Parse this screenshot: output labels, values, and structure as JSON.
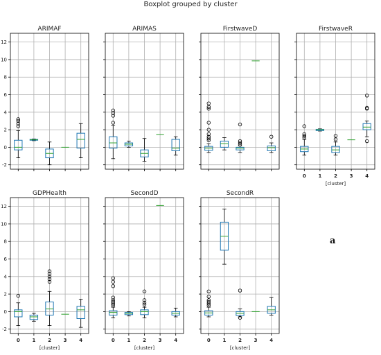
{
  "figure": {
    "title": "Boxplot grouped by cluster",
    "panel_tag": "a"
  },
  "chart_data": {
    "type": "boxplot",
    "shared": {
      "x_tick_labels": [
        "0",
        "1",
        "2",
        "3",
        "4"
      ],
      "xlabel": "[cluster]",
      "ylim_top_row": [
        -2.5,
        13
      ],
      "ylim_bottom_row": [
        -2.5,
        13
      ],
      "y_ticks": [
        -2,
        0,
        2,
        4,
        6,
        8,
        10,
        12
      ],
      "grid": true,
      "colors": {
        "box": "#1f77b4",
        "median": "#2ca02c",
        "flier": "#000000",
        "whisker": "#000000",
        "grid": "#b0b0b0"
      }
    },
    "subplots": [
      {
        "title": "ARIMAF",
        "show_x_ticks": false,
        "show_y_ticks": true,
        "boxes": [
          {
            "cluster": "0",
            "wlo": -1.2,
            "q1": -0.3,
            "med": 0.0,
            "q3": 0.8,
            "whi": 1.9,
            "fliers": [
              2.4,
              2.7,
              3.0,
              3.2
            ]
          },
          {
            "cluster": "1",
            "wlo": 0.75,
            "q1": 0.8,
            "med": 0.85,
            "q3": 0.9,
            "whi": 0.95,
            "fliers": []
          },
          {
            "cluster": "2",
            "wlo": -2.0,
            "q1": -1.2,
            "med": -0.7,
            "q3": -0.2,
            "whi": 0.6,
            "fliers": []
          },
          {
            "cluster": "3",
            "wlo": 0.0,
            "q1": 0.0,
            "med": 0.0,
            "q3": 0.0,
            "whi": 0.0,
            "fliers": []
          },
          {
            "cluster": "4",
            "wlo": -1.2,
            "q1": -0.1,
            "med": 0.9,
            "q3": 1.6,
            "whi": 2.7,
            "fliers": []
          }
        ]
      },
      {
        "title": "ARIMAS",
        "show_x_ticks": false,
        "show_y_ticks": false,
        "boxes": [
          {
            "cluster": "0",
            "wlo": -1.3,
            "q1": -0.1,
            "med": 0.5,
            "q3": 1.2,
            "whi": 2.5,
            "fliers": [
              2.8,
              3.6,
              3.9,
              4.2
            ]
          },
          {
            "cluster": "1",
            "wlo": 0.0,
            "q1": 0.15,
            "med": 0.35,
            "q3": 0.5,
            "whi": 0.7,
            "fliers": []
          },
          {
            "cluster": "2",
            "wlo": -1.6,
            "q1": -1.1,
            "med": -0.7,
            "q3": -0.3,
            "whi": 1.0,
            "fliers": []
          },
          {
            "cluster": "3",
            "wlo": 1.45,
            "q1": 1.45,
            "med": 1.45,
            "q3": 1.45,
            "whi": 1.45,
            "fliers": []
          },
          {
            "cluster": "4",
            "wlo": -0.9,
            "q1": -0.4,
            "med": -0.1,
            "q3": 0.9,
            "whi": 1.2,
            "fliers": []
          }
        ]
      },
      {
        "title": "FirstwaveD",
        "show_x_ticks": false,
        "show_y_ticks": false,
        "boxes": [
          {
            "cluster": "0",
            "wlo": -0.6,
            "q1": -0.35,
            "med": -0.1,
            "q3": 0.1,
            "whi": 0.4,
            "fliers": [
              0.8,
              1.0,
              1.2,
              1.5,
              2.0,
              2.8,
              4.4,
              4.6,
              5.0
            ]
          },
          {
            "cluster": "1",
            "wlo": -0.3,
            "q1": 0.0,
            "med": 0.4,
            "q3": 0.7,
            "whi": 1.1,
            "fliers": []
          },
          {
            "cluster": "2",
            "wlo": -0.6,
            "q1": -0.3,
            "med": -0.1,
            "q3": 0.0,
            "whi": 0.15,
            "fliers": [
              0.3,
              0.5,
              0.7,
              2.6
            ]
          },
          {
            "cluster": "3",
            "wlo": 9.85,
            "q1": 9.85,
            "med": 9.85,
            "q3": 9.85,
            "whi": 9.85,
            "fliers": []
          },
          {
            "cluster": "4",
            "wlo": -0.6,
            "q1": -0.4,
            "med": -0.05,
            "q3": 0.15,
            "whi": 0.5,
            "fliers": [
              1.2
            ]
          }
        ]
      },
      {
        "title": "FirstwaveR",
        "show_x_ticks": true,
        "show_y_ticks": false,
        "boxes": [
          {
            "cluster": "0",
            "wlo": -0.9,
            "q1": -0.5,
            "med": -0.2,
            "q3": 0.1,
            "whi": 0.9,
            "fliers": [
              1.1,
              1.3,
              1.5,
              2.4
            ]
          },
          {
            "cluster": "1",
            "wlo": 1.85,
            "q1": 1.9,
            "med": 2.0,
            "q3": 2.05,
            "whi": 2.1,
            "fliers": []
          },
          {
            "cluster": "2",
            "wlo": -0.9,
            "q1": -0.6,
            "med": -0.3,
            "q3": 0.1,
            "whi": 0.6,
            "fliers": [
              0.9,
              1.3
            ]
          },
          {
            "cluster": "3",
            "wlo": 0.85,
            "q1": 0.85,
            "med": 0.85,
            "q3": 0.85,
            "whi": 0.85,
            "fliers": []
          },
          {
            "cluster": "4",
            "wlo": 1.2,
            "q1": 2.0,
            "med": 2.3,
            "q3": 2.7,
            "whi": 3.0,
            "fliers": [
              0.7,
              4.4,
              4.5,
              5.9
            ]
          }
        ]
      },
      {
        "title": "GDPHealth",
        "show_x_ticks": true,
        "show_y_ticks": true,
        "boxes": [
          {
            "cluster": "0",
            "wlo": -1.6,
            "q1": -0.6,
            "med": 0.0,
            "q3": 0.2,
            "whi": 1.0,
            "fliers": [
              1.8
            ]
          },
          {
            "cluster": "1",
            "wlo": -1.1,
            "q1": -0.9,
            "med": -0.6,
            "q3": -0.4,
            "whi": -0.2,
            "fliers": []
          },
          {
            "cluster": "2",
            "wlo": -1.6,
            "q1": -0.4,
            "med": 0.3,
            "q3": 1.1,
            "whi": 2.3,
            "fliers": [
              3.4,
              3.7,
              4.0,
              4.3,
              4.6
            ]
          },
          {
            "cluster": "3",
            "wlo": -0.3,
            "q1": -0.3,
            "med": -0.3,
            "q3": -0.3,
            "whi": -0.3,
            "fliers": []
          },
          {
            "cluster": "4",
            "wlo": -1.8,
            "q1": -0.8,
            "med": 0.2,
            "q3": 0.6,
            "whi": 1.4,
            "fliers": []
          }
        ]
      },
      {
        "title": "SecondD",
        "show_x_ticks": true,
        "show_y_ticks": false,
        "boxes": [
          {
            "cluster": "0",
            "wlo": -0.7,
            "q1": -0.4,
            "med": -0.1,
            "q3": 0.1,
            "whi": 0.5,
            "fliers": [
              0.7,
              0.9,
              1.1,
              1.3,
              1.6,
              2.9,
              3.4,
              3.8
            ]
          },
          {
            "cluster": "1",
            "wlo": -0.5,
            "q1": -0.35,
            "med": -0.2,
            "q3": -0.1,
            "whi": 0.0,
            "fliers": []
          },
          {
            "cluster": "2",
            "wlo": -0.7,
            "q1": -0.35,
            "med": 0.0,
            "q3": 0.2,
            "whi": 0.5,
            "fliers": [
              0.8,
              1.0,
              1.3,
              2.3
            ]
          },
          {
            "cluster": "3",
            "wlo": 12.1,
            "q1": 12.1,
            "med": 12.1,
            "q3": 12.1,
            "whi": 12.1,
            "fliers": []
          },
          {
            "cluster": "4",
            "wlo": -0.6,
            "q1": -0.4,
            "med": -0.2,
            "q3": 0.0,
            "whi": 0.4,
            "fliers": []
          }
        ]
      },
      {
        "title": "SecondR",
        "show_x_ticks": true,
        "show_y_ticks": false,
        "boxes": [
          {
            "cluster": "0",
            "wlo": -0.6,
            "q1": -0.4,
            "med": -0.15,
            "q3": 0.1,
            "whi": 0.5,
            "fliers": [
              0.7,
              0.9,
              1.1,
              1.3,
              1.7,
              2.3
            ]
          },
          {
            "cluster": "1",
            "wlo": 5.4,
            "q1": 7.0,
            "med": 8.6,
            "q3": 10.2,
            "whi": 11.7,
            "fliers": []
          },
          {
            "cluster": "2",
            "wlo": -0.6,
            "q1": -0.45,
            "med": -0.2,
            "q3": 0.0,
            "whi": 0.3,
            "fliers": [
              -0.7,
              2.4
            ]
          },
          {
            "cluster": "3",
            "wlo": 0.0,
            "q1": 0.0,
            "med": 0.0,
            "q3": 0.0,
            "whi": 0.0,
            "fliers": []
          },
          {
            "cluster": "4",
            "wlo": -0.4,
            "q1": -0.2,
            "med": 0.2,
            "q3": 0.6,
            "whi": 1.6,
            "fliers": []
          }
        ]
      }
    ]
  }
}
